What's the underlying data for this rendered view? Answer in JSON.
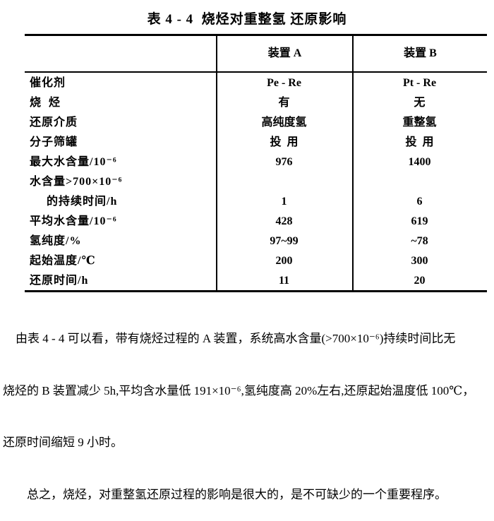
{
  "title": "表 4 - 4  烧烃对重整氢 还原影响",
  "table": {
    "col_headers": {
      "a": "装置 A",
      "b": "装置 B"
    },
    "rows": [
      {
        "label": "催化剂",
        "a": "Pe - Re",
        "b": "Pt - Re"
      },
      {
        "label": "烧  烃",
        "a": "有",
        "b": "无"
      },
      {
        "label": "还原介质",
        "a": "高纯度氢",
        "b": "重整氢"
      },
      {
        "label": "分子筛罐",
        "a": "投  用",
        "b": "投  用"
      },
      {
        "label": "最大水含量/10⁻⁶",
        "a": "976",
        "b": "1400"
      },
      {
        "label": "水含量>700×10⁻⁶",
        "a": "",
        "b": ""
      },
      {
        "label": "的持续时间/h",
        "a": "1",
        "b": "6"
      },
      {
        "label": "平均水含量/10⁻⁶",
        "a": "428",
        "b": "619"
      },
      {
        "label": "氢纯度/%",
        "a": "97~99",
        "b": "~78"
      },
      {
        "label": "起始温度/℃",
        "a": "200",
        "b": "300"
      },
      {
        "label": "还原时间/h",
        "a": "11",
        "b": "20"
      }
    ]
  },
  "paragraphs": {
    "line1": "由表 4 - 4 可以看，带有烧烃过程的 A 装置，系统高水含量(>700×10⁻⁶)持续时间比无",
    "line2": "烧烃的 B 装置减少 5h,平均含水量低 191×10⁻⁶,氢纯度高 20%左右,还原起始温度低 100℃，",
    "line3": "还原时间缩短 9 小时。",
    "line4": "总之，烧烃，对重整氢还原过程的影响是很大的，是不可缺少的一个重要程序。"
  },
  "colors": {
    "ink": "#000000",
    "paper": "#ffffff"
  }
}
